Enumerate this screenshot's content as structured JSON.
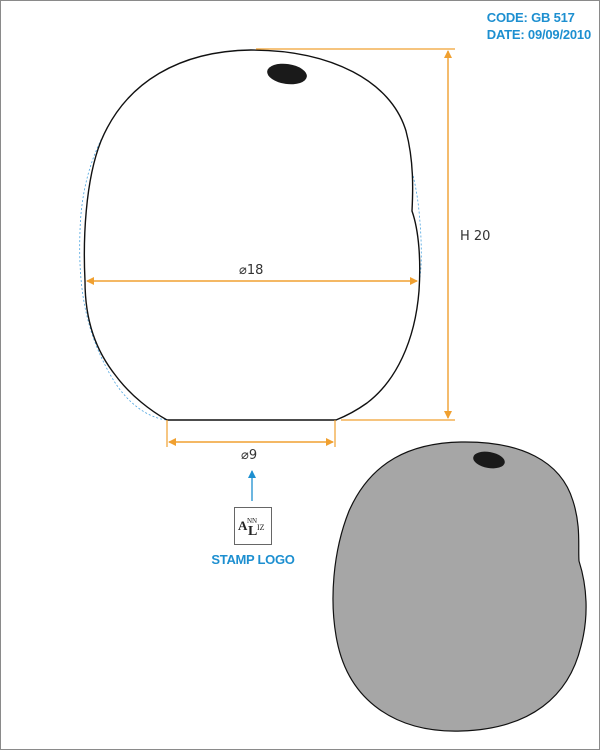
{
  "header": {
    "code": "CODE: GB 517",
    "date": "DATE: 09/09/2010"
  },
  "dimensions": {
    "height_label": "H 20",
    "diameter_label": "⌀18",
    "base_label": "⌀9"
  },
  "stamp": {
    "caption": "STAMP LOGO",
    "logo_text": "ANNLIZ"
  },
  "colors": {
    "dimension_line": "#f0a030",
    "accent_text": "#1d8fd0",
    "bead_fill": "#a6a6a6",
    "hole_fill": "#1a1a1a"
  }
}
